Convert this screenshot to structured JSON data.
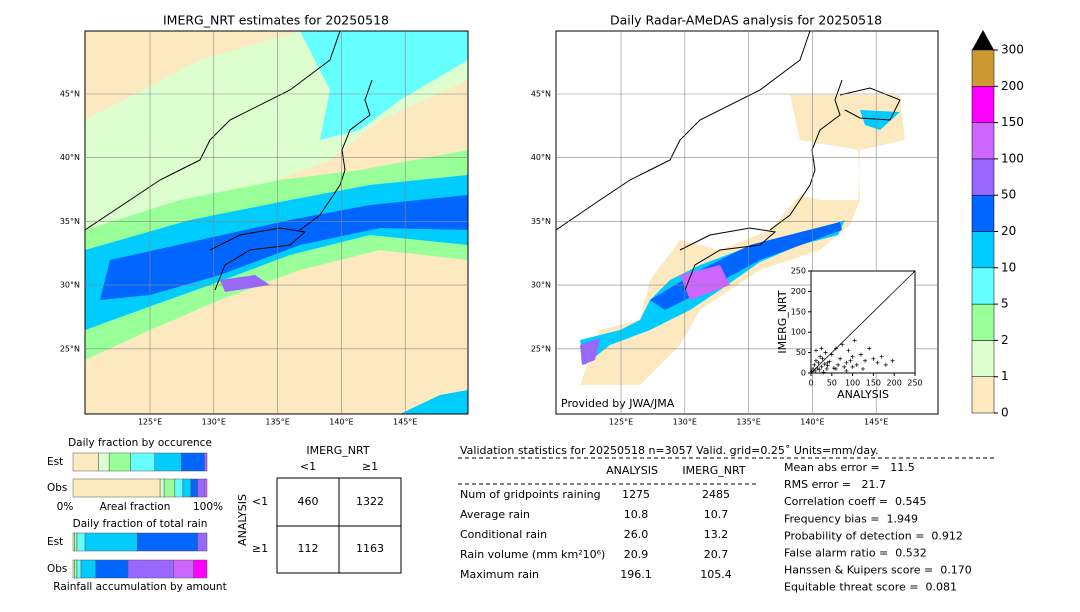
{
  "maps": [
    {
      "title": "IMERG_NRT estimates for 20250518"
    },
    {
      "title": "Daily Radar-AMeDAS analysis for 20250518",
      "credit": "Provided by JWA/JMA"
    }
  ],
  "lat_labels": [
    "45°N",
    "40°N",
    "35°N",
    "30°N",
    "25°N"
  ],
  "lon_labels": [
    "125°E",
    "130°E",
    "135°E",
    "140°E",
    "145°E"
  ],
  "colorbar": {
    "levels": [
      0,
      1,
      2,
      5,
      10,
      20,
      50,
      100,
      150,
      200,
      300
    ],
    "colors": [
      "#fde9c0",
      "#ddffd0",
      "#99ff99",
      "#66ffff",
      "#00ccff",
      "#0066ff",
      "#9966ff",
      "#cc66ff",
      "#ff00ff",
      "#cc9933"
    ],
    "extend_color": "#000000"
  },
  "scatter": {
    "xlabel": "ANALYSIS",
    "ylabel": "IMERG_NRT",
    "xlim": [
      0,
      250
    ],
    "ylim": [
      0,
      250
    ],
    "xticks": [
      0,
      50,
      100,
      150,
      200,
      250
    ],
    "yticks": [
      0,
      50,
      100,
      150,
      200,
      250
    ],
    "x": [
      2,
      5,
      8,
      10,
      12,
      15,
      18,
      20,
      22,
      25,
      28,
      30,
      33,
      35,
      38,
      40,
      45,
      50,
      55,
      60,
      65,
      70,
      75,
      80,
      85,
      90,
      95,
      100,
      105,
      110,
      120,
      130,
      140,
      150,
      160,
      170,
      180,
      196,
      12,
      25,
      40,
      60,
      85,
      100,
      125
    ],
    "y": [
      3,
      10,
      20,
      5,
      30,
      12,
      25,
      8,
      40,
      15,
      35,
      2,
      22,
      50,
      10,
      18,
      28,
      45,
      12,
      60,
      20,
      35,
      70,
      15,
      25,
      55,
      30,
      40,
      80,
      20,
      45,
      30,
      60,
      35,
      25,
      40,
      20,
      30,
      55,
      60,
      25,
      10,
      5,
      15,
      10
    ]
  },
  "fractions": {
    "occurrence": {
      "title": "Daily fraction by occurence",
      "rows": [
        {
          "label": "Est",
          "values": [
            19,
            8,
            16,
            18,
            20,
            17,
            2,
            0,
            0,
            0
          ]
        },
        {
          "label": "Obs",
          "values": [
            65,
            3,
            8,
            6,
            6,
            5,
            5,
            2,
            0,
            0
          ]
        }
      ],
      "axis_labels": [
        "0%",
        "Areal fraction",
        "100%"
      ]
    },
    "amount": {
      "title": "Daily fraction of total rain",
      "rows": [
        {
          "label": "Est",
          "values": [
            0,
            1,
            2,
            6,
            39,
            45,
            7,
            0,
            0,
            0
          ]
        },
        {
          "label": "Obs",
          "values": [
            0,
            1,
            2,
            3,
            11,
            24,
            34,
            15,
            10,
            0
          ]
        }
      ],
      "caption": "Rainfall accumulation by amount"
    }
  },
  "contingency": {
    "title": "IMERG_NRT",
    "col_labels": [
      "<1",
      "≥1"
    ],
    "row_title": "ANALYSIS",
    "row_labels": [
      "<1",
      "≥1"
    ],
    "cells": [
      [
        "460",
        "1322"
      ],
      [
        "112",
        "1163"
      ]
    ]
  },
  "stats": {
    "header": "Validation statistics for 20250518  n=3057 Valid. grid=0.25˚ Units=mm/day.",
    "columns": [
      "ANALYSIS",
      "IMERG_NRT"
    ],
    "rows": [
      {
        "label": "Num of gridpoints raining",
        "values": [
          "1275",
          "2485"
        ]
      },
      {
        "label": "Average rain",
        "values": [
          "10.8",
          "10.7"
        ]
      },
      {
        "label": "Conditional rain",
        "values": [
          "26.0",
          "13.2"
        ]
      },
      {
        "label": "Rain volume (mm km²10⁶)",
        "values": [
          "20.9",
          "20.7"
        ]
      },
      {
        "label": "Maximum rain",
        "values": [
          "196.1",
          "105.4"
        ]
      }
    ],
    "scores": [
      "Mean abs error =   11.5",
      "RMS error =   21.7",
      "Correlation coeff =  0.545",
      "Frequency bias =  1.949",
      "Probability of detection =  0.912",
      "False alarm ratio =  0.532",
      "Hanssen & Kuipers score =  0.170",
      "Equitable threat score =  0.081"
    ]
  }
}
